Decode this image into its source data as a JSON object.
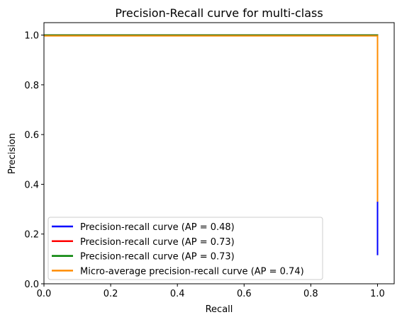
{
  "chart_data": {
    "type": "line",
    "title": "Precision-Recall curve for multi-class",
    "xlabel": "Recall",
    "ylabel": "Precision",
    "xlim": [
      0.0,
      1.05
    ],
    "ylim": [
      0.0,
      1.05
    ],
    "xticks": [
      "0.0",
      "0.2",
      "0.4",
      "0.6",
      "0.8",
      "1.0"
    ],
    "yticks": [
      "0.0",
      "0.2",
      "0.4",
      "0.6",
      "0.8",
      "1.0"
    ],
    "grid": false,
    "legend_position": "lower-left",
    "series": [
      {
        "name": "Precision-recall curve (AP = 0.48)",
        "color": "#0000ff",
        "x": [
          0.0,
          1.0,
          1.0,
          1.0
        ],
        "y": [
          1.0,
          1.0,
          0.33,
          0.115
        ]
      },
      {
        "name": "Precision-recall curve (AP = 0.73)",
        "color": "#ff0000",
        "x": [
          0.0,
          1.0,
          1.0
        ],
        "y": [
          1.0,
          1.0,
          0.33
        ]
      },
      {
        "name": "Precision-recall curve (AP = 0.73)",
        "color": "#008000",
        "x": [
          0.0,
          1.0,
          1.0
        ],
        "y": [
          1.0,
          1.0,
          0.33
        ]
      },
      {
        "name": "Micro-average precision-recall curve (AP = 0.74)",
        "color": "#ff8c00",
        "x": [
          0.0,
          1.0,
          1.0
        ],
        "y": [
          0.997,
          0.997,
          0.33
        ]
      }
    ]
  }
}
